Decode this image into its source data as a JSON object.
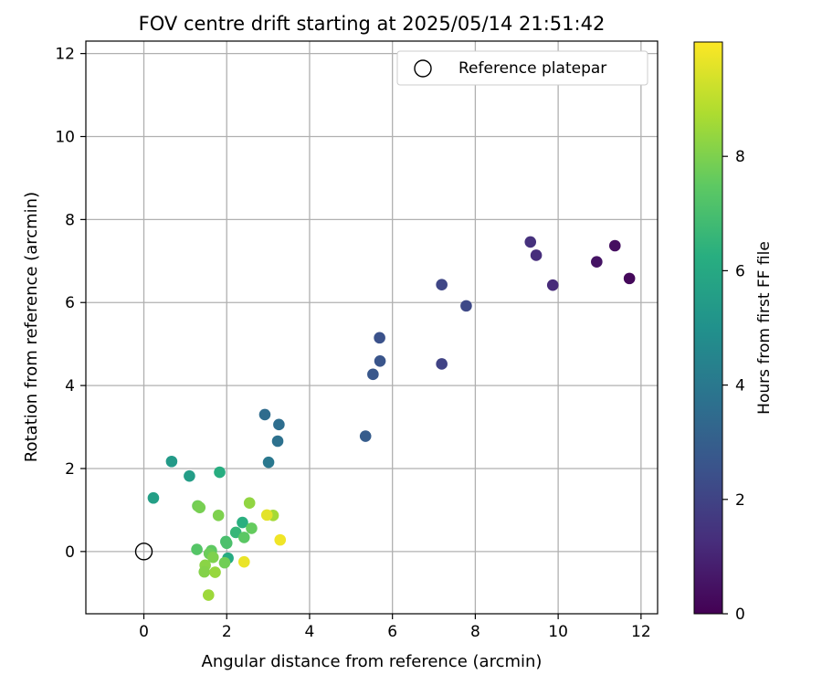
{
  "chart_data": {
    "type": "scatter",
    "title": "FOV centre drift starting at 2025/05/14 21:51:42",
    "xlabel": "Angular distance from reference (arcmin)",
    "ylabel": "Rotation from reference (arcmin)",
    "xlim": [
      -1.4,
      12.4
    ],
    "ylim": [
      -1.5,
      12.3
    ],
    "xticks": [
      "0",
      "2",
      "4",
      "6",
      "8",
      "10",
      "12"
    ],
    "yticks": [
      "0",
      "2",
      "4",
      "6",
      "8",
      "10",
      "12"
    ],
    "grid": true,
    "legend": {
      "placement": "top-right",
      "label": "Reference platepar"
    },
    "reference_point": {
      "x": 0,
      "y": 0
    },
    "colorbar": {
      "label": "Hours from first FF file",
      "colormap": "viridis",
      "range": [
        0,
        10
      ],
      "ticks": [
        "0",
        "2",
        "4",
        "6",
        "8"
      ]
    },
    "points": [
      {
        "x": 11.72,
        "y": 6.58,
        "c": 0.2
      },
      {
        "x": 11.37,
        "y": 7.37,
        "c": 0.4
      },
      {
        "x": 10.93,
        "y": 6.98,
        "c": 0.5
      },
      {
        "x": 9.87,
        "y": 6.42,
        "c": 1.2
      },
      {
        "x": 9.47,
        "y": 7.14,
        "c": 1.3
      },
      {
        "x": 9.33,
        "y": 7.46,
        "c": 1.4
      },
      {
        "x": 7.78,
        "y": 5.92,
        "c": 2.2
      },
      {
        "x": 7.19,
        "y": 6.43,
        "c": 2.1
      },
      {
        "x": 7.19,
        "y": 4.52,
        "c": 2.0
      },
      {
        "x": 5.69,
        "y": 5.15,
        "c": 2.5
      },
      {
        "x": 5.7,
        "y": 4.59,
        "c": 2.6
      },
      {
        "x": 5.53,
        "y": 4.27,
        "c": 2.7
      },
      {
        "x": 5.35,
        "y": 2.78,
        "c": 2.9
      },
      {
        "x": 2.92,
        "y": 3.3,
        "c": 3.5
      },
      {
        "x": 3.26,
        "y": 3.06,
        "c": 3.6
      },
      {
        "x": 3.23,
        "y": 2.66,
        "c": 3.7
      },
      {
        "x": 3.01,
        "y": 2.15,
        "c": 4.0
      },
      {
        "x": 0.67,
        "y": 2.17,
        "c": 5.4
      },
      {
        "x": 1.1,
        "y": 1.82,
        "c": 5.5
      },
      {
        "x": 1.83,
        "y": 1.91,
        "c": 6.2
      },
      {
        "x": 0.23,
        "y": 1.29,
        "c": 5.6
      },
      {
        "x": 2.38,
        "y": 0.7,
        "c": 6.3
      },
      {
        "x": 2.22,
        "y": 0.46,
        "c": 6.6
      },
      {
        "x": 2.03,
        "y": -0.16,
        "c": 6.1
      },
      {
        "x": 1.3,
        "y": 1.1,
        "c": 7.8
      },
      {
        "x": 1.35,
        "y": 1.06,
        "c": 7.9
      },
      {
        "x": 2.55,
        "y": 1.17,
        "c": 8.3
      },
      {
        "x": 1.8,
        "y": 0.87,
        "c": 8.0
      },
      {
        "x": 2.6,
        "y": 0.56,
        "c": 7.6
      },
      {
        "x": 2.42,
        "y": 0.34,
        "c": 7.4
      },
      {
        "x": 1.98,
        "y": 0.24,
        "c": 7.0
      },
      {
        "x": 2.0,
        "y": 0.2,
        "c": 7.1
      },
      {
        "x": 1.28,
        "y": 0.05,
        "c": 7.3
      },
      {
        "x": 1.63,
        "y": 0.02,
        "c": 7.5
      },
      {
        "x": 1.58,
        "y": -0.05,
        "c": 7.7
      },
      {
        "x": 1.67,
        "y": -0.14,
        "c": 8.0
      },
      {
        "x": 1.48,
        "y": -0.33,
        "c": 8.2
      },
      {
        "x": 1.95,
        "y": -0.27,
        "c": 7.8
      },
      {
        "x": 1.46,
        "y": -0.49,
        "c": 8.1
      },
      {
        "x": 1.72,
        "y": -0.5,
        "c": 8.4
      },
      {
        "x": 1.56,
        "y": -1.05,
        "c": 8.5
      },
      {
        "x": 3.12,
        "y": 0.87,
        "c": 8.6
      },
      {
        "x": 2.97,
        "y": 0.88,
        "c": 9.6
      },
      {
        "x": 3.29,
        "y": 0.28,
        "c": 9.8
      },
      {
        "x": 2.42,
        "y": -0.25,
        "c": 9.7
      }
    ]
  }
}
